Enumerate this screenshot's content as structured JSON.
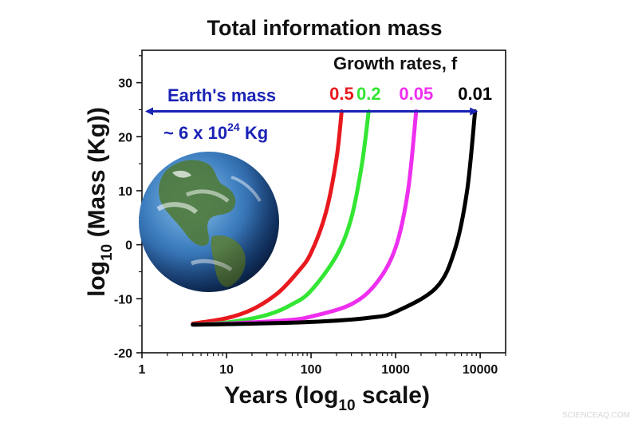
{
  "chart_data": {
    "type": "line",
    "title": "Total information mass",
    "xlabel": {
      "pre": "Years (log",
      "sub": "10",
      "post": " scale)"
    },
    "ylabel": {
      "pre": "log",
      "sub": "10",
      "post": " (Mass (Kg))"
    },
    "xscale": "log",
    "xlim": [
      1,
      20000
    ],
    "ylim": [
      -20,
      36
    ],
    "x_ticks": [
      1,
      10,
      100,
      1000,
      10000
    ],
    "x_tick_labels": [
      "1",
      "10",
      "100",
      "1000",
      "10000"
    ],
    "y_ticks": [
      -20,
      -10,
      0,
      10,
      20,
      30
    ],
    "y_tick_labels": [
      "-20",
      "-10",
      "0",
      "10",
      "20",
      "30"
    ],
    "legend": {
      "title": "Growth rates, f",
      "placement": "top-right"
    },
    "series": [
      {
        "name": "0.5",
        "color": "#e8191e",
        "x": [
          4,
          10,
          20,
          40,
          70,
          100,
          150,
          200,
          230
        ],
        "y": [
          -14.6,
          -13.6,
          -12,
          -9,
          -5,
          -1.5,
          6,
          16,
          24.7
        ]
      },
      {
        "name": "0.2",
        "color": "#33e633",
        "x": [
          4,
          10,
          30,
          60,
          100,
          200,
          300,
          400,
          480
        ],
        "y": [
          -14.8,
          -14.4,
          -13,
          -11,
          -8.5,
          -2,
          5,
          15,
          24.7
        ]
      },
      {
        "name": "0.05",
        "color": "#ee2fee",
        "x": [
          4,
          10,
          50,
          100,
          300,
          600,
          1000,
          1400,
          1750
        ],
        "y": [
          -14.8,
          -14.6,
          -14,
          -13.3,
          -11,
          -7,
          -0.5,
          10,
          24.7
        ]
      },
      {
        "name": "0.01",
        "color": "#000000",
        "x": [
          4,
          10,
          100,
          500,
          1000,
          3000,
          5000,
          7000,
          8700
        ],
        "y": [
          -14.8,
          -14.7,
          -14.3,
          -13.5,
          -12.4,
          -8,
          -1,
          10,
          24.7
        ]
      }
    ],
    "annotation": {
      "label": "Earth's mass",
      "value_pre": "~ 6 x 10",
      "value_exp": "24",
      "value_post": " Kg",
      "y": 24.7,
      "x_range": [
        1,
        9000
      ],
      "color": "#1a23b5"
    },
    "grid": false,
    "image": "earth-globe"
  },
  "watermark": "SCIENCEAQ.COM"
}
